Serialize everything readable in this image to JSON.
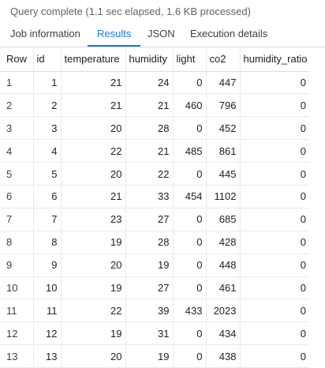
{
  "status_text": "Query complete (1.1 sec elapsed, 1.6 KB processed)",
  "tabs": [
    {
      "label": "Job information"
    },
    {
      "label": "Results"
    },
    {
      "label": "JSON"
    },
    {
      "label": "Execution details"
    }
  ],
  "active_tab": "Results",
  "columns": [
    "Row",
    "id",
    "temperature",
    "humidity",
    "light",
    "co2",
    "humidity_ratio"
  ],
  "rows": [
    [
      "1",
      "1",
      "21",
      "24",
      "0",
      "447",
      "0"
    ],
    [
      "2",
      "2",
      "21",
      "21",
      "460",
      "796",
      "0"
    ],
    [
      "3",
      "3",
      "20",
      "28",
      "0",
      "452",
      "0"
    ],
    [
      "4",
      "4",
      "22",
      "21",
      "485",
      "861",
      "0"
    ],
    [
      "5",
      "5",
      "20",
      "22",
      "0",
      "445",
      "0"
    ],
    [
      "6",
      "6",
      "21",
      "33",
      "454",
      "1102",
      "0"
    ],
    [
      "7",
      "7",
      "23",
      "27",
      "0",
      "685",
      "0"
    ],
    [
      "8",
      "8",
      "19",
      "28",
      "0",
      "428",
      "0"
    ],
    [
      "9",
      "9",
      "20",
      "19",
      "0",
      "448",
      "0"
    ],
    [
      "10",
      "10",
      "19",
      "27",
      "0",
      "461",
      "0"
    ],
    [
      "11",
      "11",
      "22",
      "39",
      "433",
      "2023",
      "0"
    ],
    [
      "12",
      "12",
      "19",
      "31",
      "0",
      "434",
      "0"
    ],
    [
      "13",
      "13",
      "20",
      "19",
      "0",
      "438",
      "0"
    ]
  ],
  "colors": {
    "accent": "#1a73e8",
    "text": "#202124",
    "muted": "#5f6368",
    "border": "#e8eaed"
  }
}
